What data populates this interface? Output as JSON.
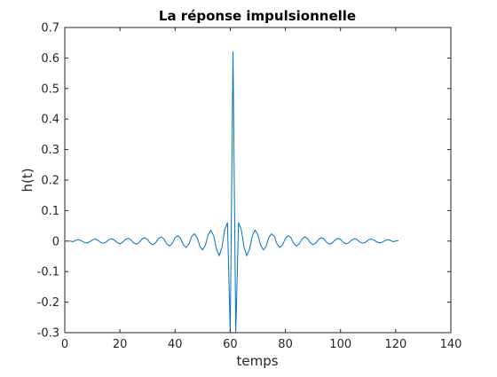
{
  "chart_data": {
    "type": "line",
    "title": "La réponse impulsionnelle",
    "xlabel": "temps",
    "ylabel": "h(t)",
    "xlim": [
      0,
      140
    ],
    "ylim": [
      -0.3,
      0.7
    ],
    "x_ticks": [
      0,
      20,
      40,
      60,
      80,
      100,
      120,
      140
    ],
    "x_tick_labels": [
      "0",
      "20",
      "40",
      "60",
      "80",
      "100",
      "120",
      "140"
    ],
    "y_ticks": [
      -0.3,
      -0.2,
      -0.1,
      0,
      0.1,
      0.2,
      0.3,
      0.4,
      0.5,
      0.6,
      0.7
    ],
    "y_tick_labels": [
      "-0.3",
      "-0.2",
      "-0.1",
      "0",
      "0.1",
      "0.2",
      "0.3",
      "0.4",
      "0.5",
      "0.6",
      "0.7"
    ],
    "grid": false,
    "legend": false,
    "colors": {
      "series": "#0072bd",
      "axis": "#262626"
    },
    "series": [
      {
        "x": [
          1,
          2,
          3,
          4,
          5,
          6,
          7,
          8,
          9,
          10,
          11,
          12,
          13,
          14,
          15,
          16,
          17,
          18,
          19,
          20,
          21,
          22,
          23,
          24,
          25,
          26,
          27,
          28,
          29,
          30,
          31,
          32,
          33,
          34,
          35,
          36,
          37,
          38,
          39,
          40,
          41,
          42,
          43,
          44,
          45,
          46,
          47,
          48,
          49,
          50,
          51,
          52,
          53,
          54,
          55,
          56,
          57,
          58,
          59,
          60,
          61,
          62,
          63,
          64,
          65,
          66,
          67,
          68,
          69,
          70,
          71,
          72,
          73,
          74,
          75,
          76,
          77,
          78,
          79,
          80,
          81,
          82,
          83,
          84,
          85,
          86,
          87,
          88,
          89,
          90,
          91,
          92,
          93,
          94,
          95,
          96,
          97,
          98,
          99,
          100,
          101,
          102,
          103,
          104,
          105,
          106,
          107,
          108,
          109,
          110,
          111,
          112,
          113,
          114,
          115,
          116,
          117,
          118,
          119,
          120,
          121
        ],
        "y": [
          0,
          0,
          -0.002,
          0.003,
          0.005,
          0.001,
          -0.004,
          -0.006,
          -0.002,
          0.004,
          0.007,
          0.003,
          -0.004,
          -0.007,
          -0.003,
          0.005,
          0.008,
          0.003,
          -0.005,
          -0.009,
          -0.004,
          0.006,
          0.009,
          0.004,
          -0.006,
          -0.01,
          -0.004,
          0.007,
          0.011,
          0.005,
          -0.007,
          -0.012,
          -0.005,
          0.009,
          0.014,
          0.006,
          -0.009,
          -0.016,
          -0.007,
          0.011,
          0.018,
          0.009,
          -0.012,
          -0.021,
          -0.01,
          0.015,
          0.024,
          0.012,
          -0.017,
          -0.029,
          -0.013,
          0.021,
          0.036,
          0.017,
          -0.026,
          -0.048,
          -0.02,
          0.038,
          0.06,
          -0.3,
          0.62,
          -0.3,
          0.06,
          0.038,
          -0.02,
          -0.048,
          -0.026,
          0.017,
          0.036,
          0.021,
          -0.013,
          -0.029,
          -0.017,
          0.012,
          0.024,
          0.015,
          -0.01,
          -0.021,
          -0.012,
          0.009,
          0.018,
          0.011,
          -0.007,
          -0.016,
          -0.009,
          0.006,
          0.014,
          0.009,
          -0.005,
          -0.012,
          -0.007,
          0.005,
          0.011,
          0.007,
          -0.004,
          -0.01,
          -0.006,
          0.004,
          0.009,
          0.006,
          -0.004,
          -0.009,
          -0.005,
          0.003,
          0.008,
          0.005,
          -0.003,
          -0.007,
          -0.004,
          0.003,
          0.007,
          0.004,
          -0.002,
          -0.006,
          -0.004,
          0.001,
          0.005,
          0.003,
          -0.002,
          0,
          0.002
        ]
      }
    ]
  }
}
